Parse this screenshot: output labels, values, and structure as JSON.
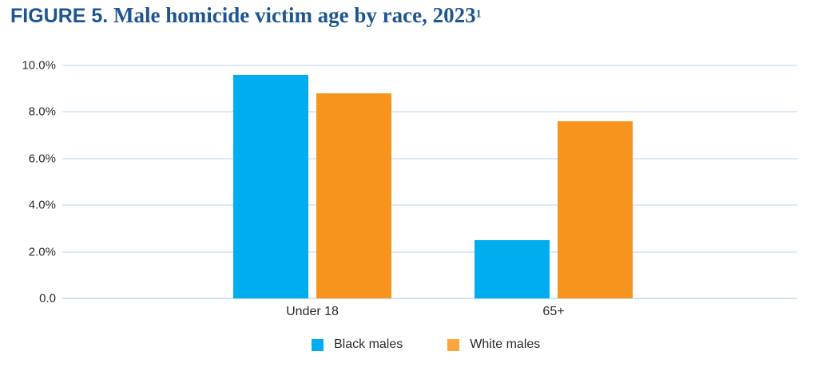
{
  "title": {
    "prefix": "FIGURE 5.",
    "main": " Male homicide victim age by race, 2023",
    "superscript": "1"
  },
  "colors": {
    "title_text": "#1D5591",
    "axis_text": "#2B2A29",
    "gridline": "#DAEAF8"
  },
  "chart_data": {
    "type": "bar",
    "title": "FIGURE 5. Male homicide victim age by race, 2023",
    "categories": [
      "Under 18",
      "65+"
    ],
    "series": [
      {
        "name": "Black males",
        "color": "#00AEEF",
        "legend_color": "#00AEEF",
        "values": [
          9.6,
          2.5
        ]
      },
      {
        "name": "White males",
        "color": "#F7941E",
        "legend_color": "#F9A63E",
        "values": [
          8.8,
          7.6
        ]
      }
    ],
    "ylabel": "",
    "xlabel": "",
    "ylim": [
      0,
      10
    ],
    "y_ticks": [
      "10.0%",
      "8.0%",
      "6.0%",
      "4.0%",
      "2.0%",
      "0.0"
    ],
    "y_tick_values": [
      10,
      8,
      6,
      4,
      2,
      0
    ],
    "grid": "horizontal",
    "legend_position": "bottom"
  }
}
